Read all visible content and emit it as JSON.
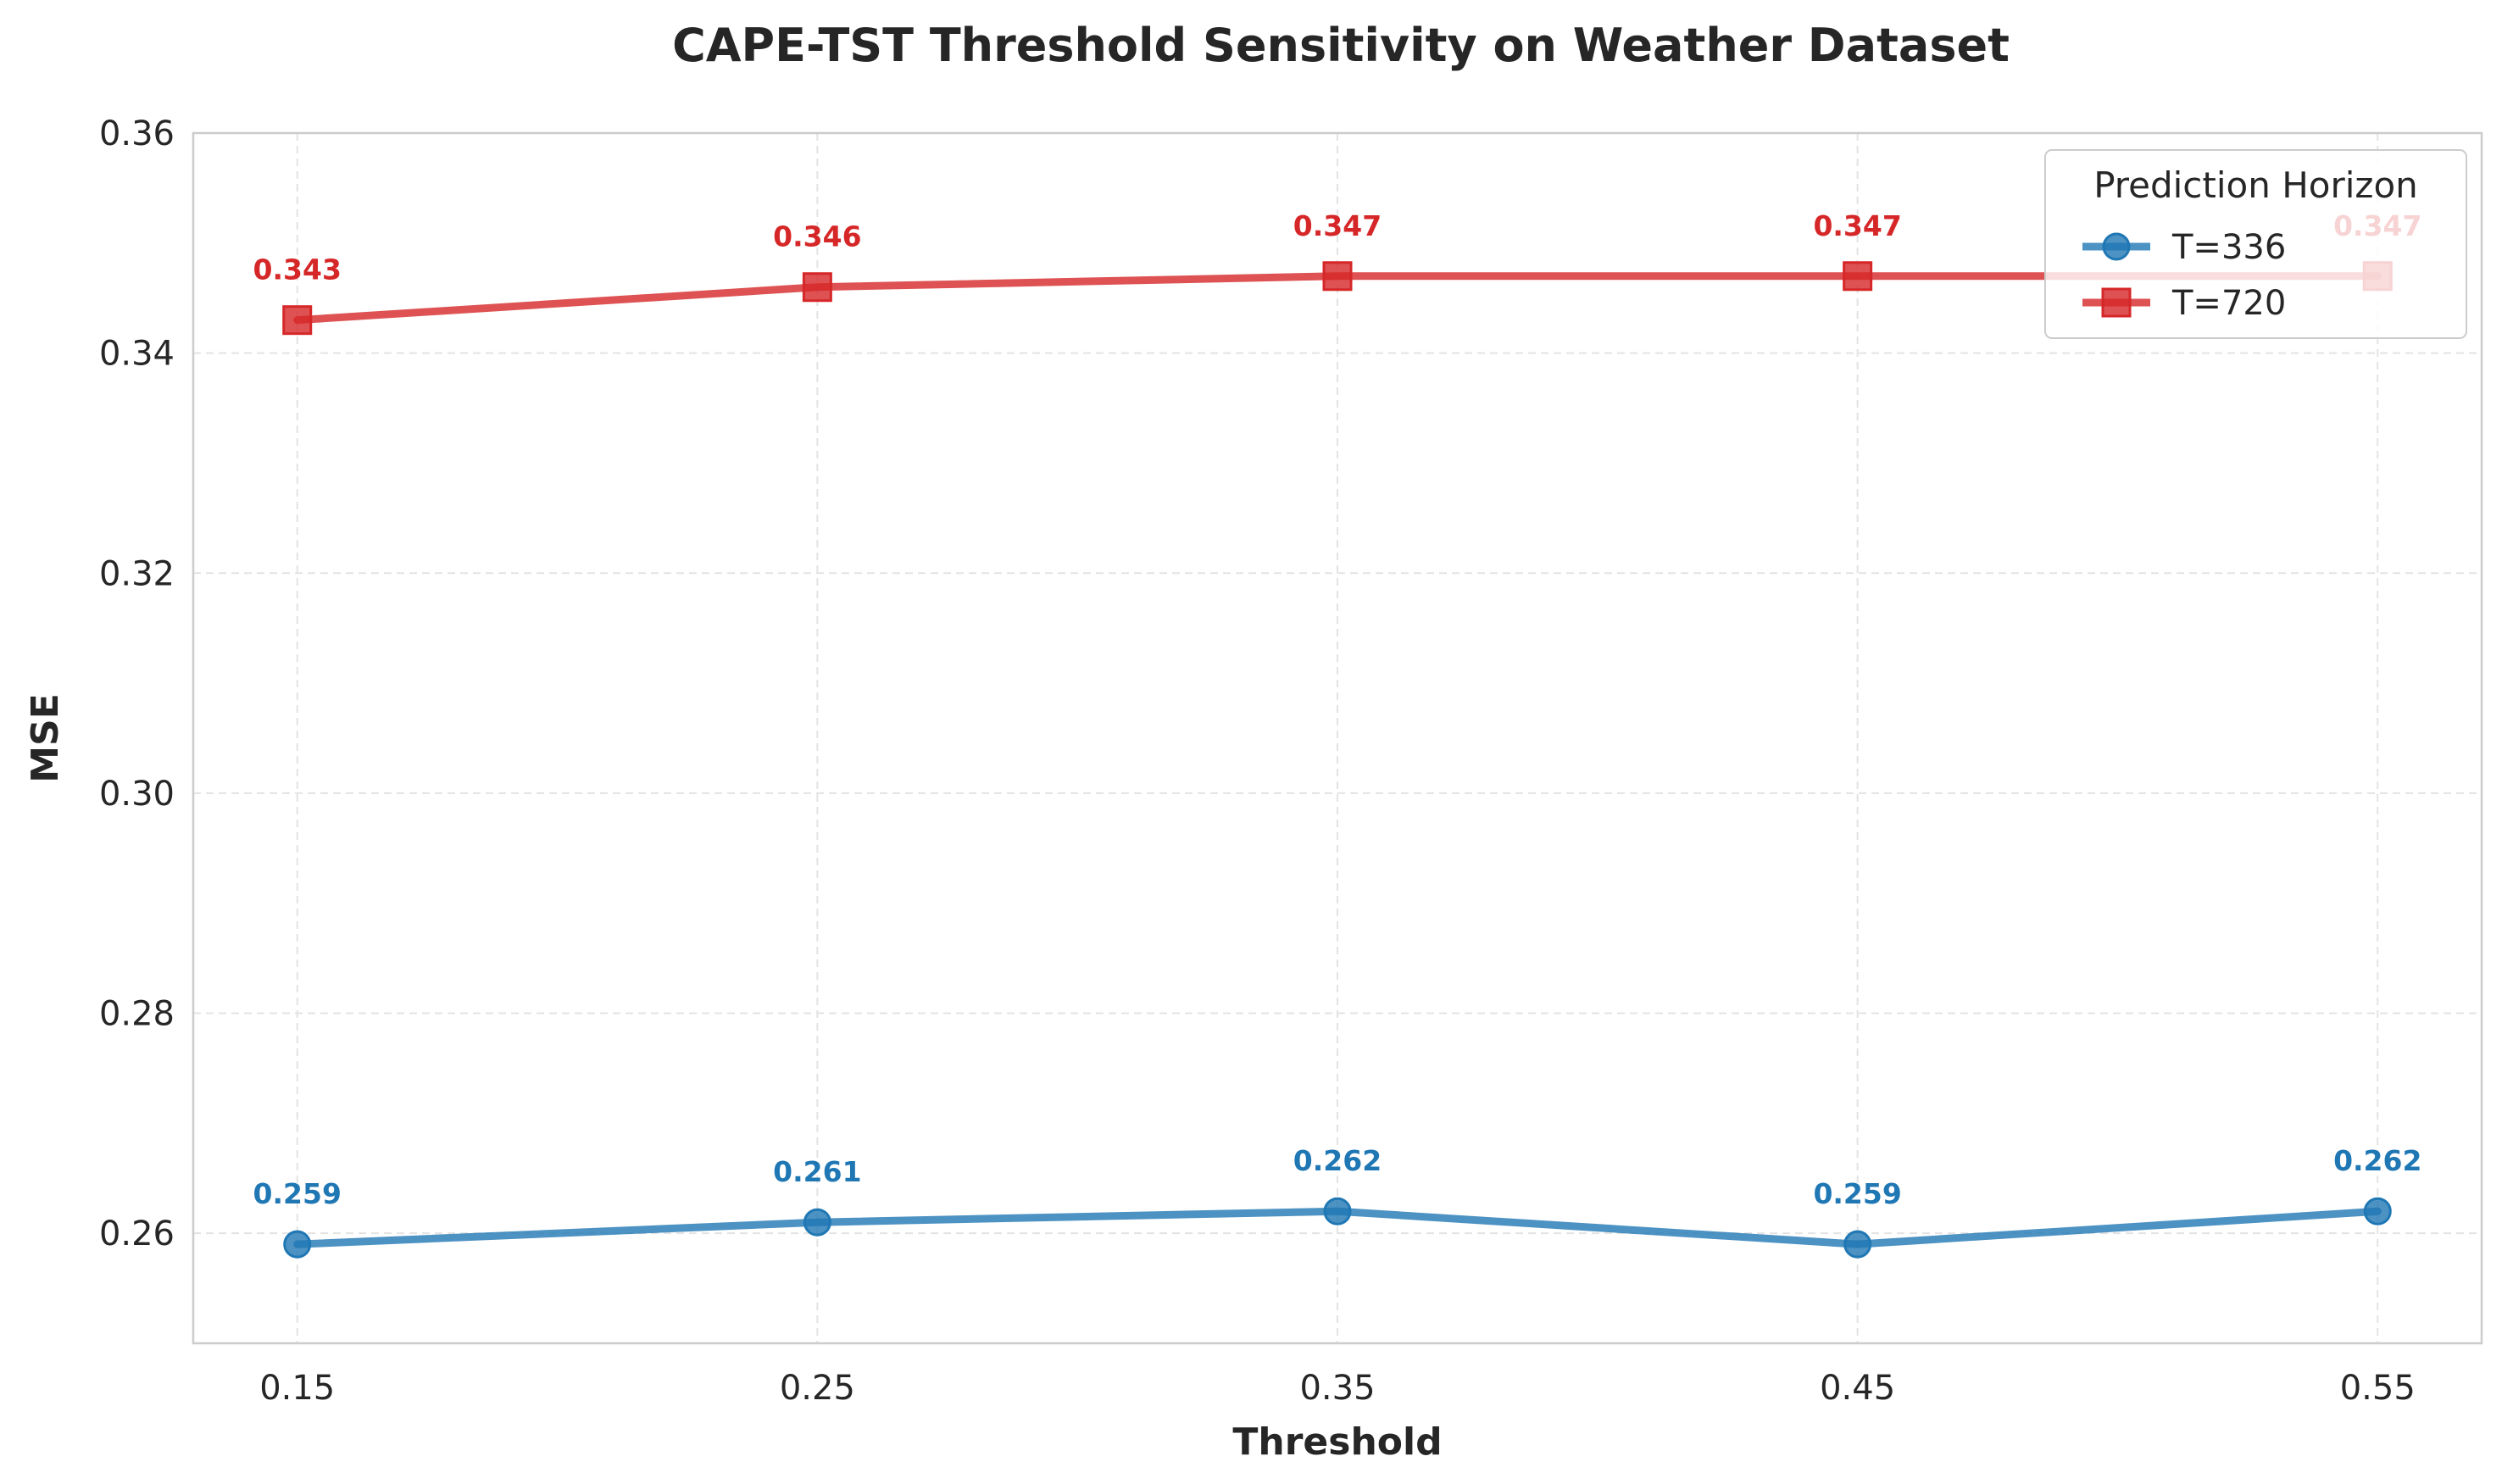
{
  "chart_data": {
    "type": "line",
    "title": "CAPE-TST Threshold Sensitivity on Weather Dataset",
    "xlabel": "Threshold",
    "ylabel": "MSE",
    "x": [
      0.15,
      0.25,
      0.35,
      0.45,
      0.55
    ],
    "x_tick_labels": [
      "0.15",
      "0.25",
      "0.35",
      "0.45",
      "0.55"
    ],
    "y_ticks": [
      0.26,
      0.28,
      0.3,
      0.32,
      0.34,
      0.36
    ],
    "y_tick_labels": [
      "0.26",
      "0.28",
      "0.30",
      "0.32",
      "0.34",
      "0.36"
    ],
    "xlim": [
      0.13,
      0.57
    ],
    "ylim": [
      0.25,
      0.36
    ],
    "grid": true,
    "legend": {
      "title": "Prediction Horizon",
      "placement": "top-right"
    },
    "series": [
      {
        "name": "T=336",
        "values": [
          0.259,
          0.261,
          0.262,
          0.259,
          0.262
        ],
        "labels": [
          "0.259",
          "0.261",
          "0.262",
          "0.259",
          "0.262"
        ],
        "color": "#1f77b4",
        "marker": "circle"
      },
      {
        "name": "T=720",
        "values": [
          0.343,
          0.346,
          0.347,
          0.347,
          0.347
        ],
        "labels": [
          "0.343",
          "0.346",
          "0.347",
          "0.347",
          "0.347"
        ],
        "color": "#d62728",
        "marker": "square"
      }
    ]
  }
}
